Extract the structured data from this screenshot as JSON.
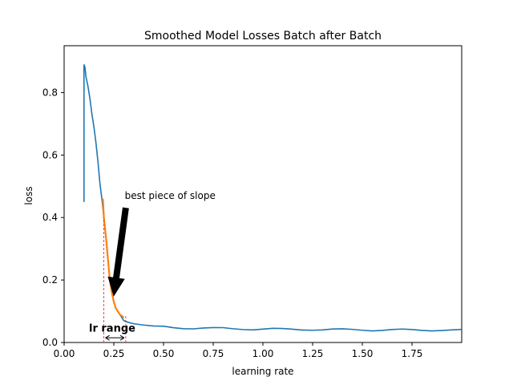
{
  "chart_data": {
    "type": "line",
    "title": "Smoothed Model Losses Batch after Batch",
    "xlabel": "learning rate",
    "ylabel": "loss",
    "xlim": [
      0.0,
      2.0
    ],
    "ylim": [
      0.0,
      0.95
    ],
    "grid": false,
    "x_ticks": [
      0.0,
      0.25,
      0.5,
      0.75,
      1.0,
      1.25,
      1.5,
      1.75
    ],
    "x_tick_labels": [
      "0.00",
      "0.25",
      "0.50",
      "0.75",
      "1.00",
      "1.25",
      "1.50",
      "1.75"
    ],
    "y_ticks": [
      0.0,
      0.2,
      0.4,
      0.6,
      0.8
    ],
    "y_tick_labels": [
      "0.0",
      "0.2",
      "0.4",
      "0.6",
      "0.8"
    ],
    "series": [
      {
        "color": "#1f77b4",
        "x": [
          0.1,
          0.1,
          0.105,
          0.11,
          0.12,
          0.13,
          0.14,
          0.15,
          0.16,
          0.17,
          0.18,
          0.19,
          0.2,
          0.21,
          0.22,
          0.23,
          0.24,
          0.25,
          0.26,
          0.27,
          0.28,
          0.29,
          0.3,
          0.32,
          0.35,
          0.4,
          0.45,
          0.5,
          0.55,
          0.6,
          0.65,
          0.7,
          0.75,
          0.8,
          0.85,
          0.9,
          0.95,
          1.0,
          1.05,
          1.1,
          1.15,
          1.2,
          1.25,
          1.3,
          1.35,
          1.4,
          1.45,
          1.5,
          1.55,
          1.6,
          1.65,
          1.7,
          1.75,
          1.8,
          1.85,
          1.9,
          1.95,
          2.0
        ],
        "y": [
          0.45,
          0.89,
          0.88,
          0.85,
          0.82,
          0.78,
          0.73,
          0.69,
          0.64,
          0.58,
          0.51,
          0.46,
          0.4,
          0.34,
          0.27,
          0.2,
          0.16,
          0.13,
          0.11,
          0.1,
          0.09,
          0.08,
          0.07,
          0.065,
          0.06,
          0.055,
          0.05,
          0.05,
          0.048,
          0.047,
          0.046,
          0.046,
          0.045,
          0.045,
          0.044,
          0.044,
          0.043,
          0.043,
          0.043,
          0.042,
          0.042,
          0.042,
          0.042,
          0.041,
          0.041,
          0.041,
          0.041,
          0.041,
          0.04,
          0.04,
          0.04,
          0.04,
          0.04,
          0.04,
          0.04,
          0.04,
          0.039,
          0.039
        ]
      },
      {
        "color": "#ff7f0e",
        "x": [
          0.195,
          0.2,
          0.21,
          0.22,
          0.23,
          0.24,
          0.25,
          0.26,
          0.27,
          0.28,
          0.29,
          0.3
        ],
        "y": [
          0.46,
          0.4,
          0.34,
          0.27,
          0.2,
          0.16,
          0.13,
          0.11,
          0.1,
          0.09,
          0.085,
          0.08
        ]
      }
    ],
    "annotations": {
      "slope_label": "best piece of slope",
      "range_label": "lr range",
      "range_x": [
        0.2,
        0.31
      ],
      "arrow_from": [
        0.31,
        0.43
      ],
      "arrow_to": [
        0.25,
        0.15
      ]
    }
  }
}
